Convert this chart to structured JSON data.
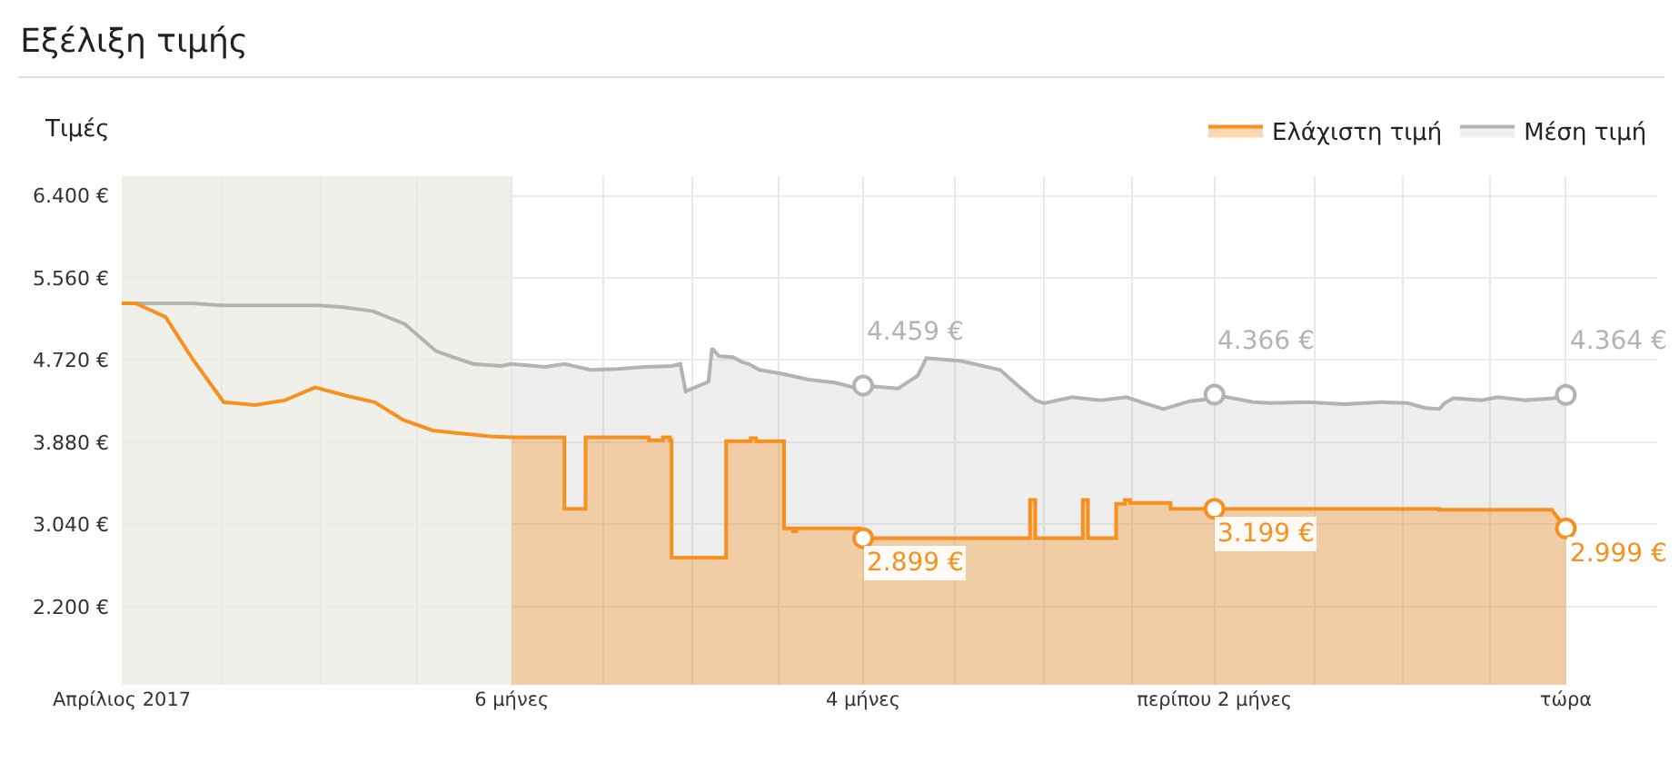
{
  "chart_data": {
    "type": "line",
    "title": "Εξέλιξη τιμής",
    "ylabel": "Τιμές",
    "series": [
      {
        "type": "line",
        "color": "#b3b3b3",
        "x": [
          8.22,
          7.82,
          7.65,
          7.1,
          6.96,
          6.79,
          6.61,
          6.43,
          6.22,
          6.06,
          6
        ],
        "values": [
          5300,
          5300,
          5280,
          5280,
          5260,
          5220,
          5090,
          4810,
          4680,
          4660,
          4680
        ]
      },
      {
        "name": "Μέση τιμή",
        "type": "area",
        "color": "#b3b3b3",
        "x": [
          6,
          5.81,
          5.7,
          5.65,
          5.55,
          5.4,
          5.24,
          5.09,
          5.04,
          5.01,
          4.93,
          4.88,
          4.86,
          4.82,
          4.74,
          4.69,
          4.65,
          4.59,
          4.46,
          4.31,
          4.16,
          4.05,
          4,
          3.8,
          3.69,
          3.64,
          3.44,
          3.22,
          3.12,
          3.02,
          2.97,
          2.81,
          2.65,
          2.5,
          2.4,
          2.29,
          2.14,
          2.04,
          2,
          1.78,
          1.68,
          1.47,
          1.26,
          1.05,
          0.9,
          0.8,
          0.72,
          0.69,
          0.64,
          0.48,
          0.39,
          0.23,
          0.07,
          0
        ],
        "values": [
          4680,
          4650,
          4680,
          4660,
          4620,
          4630,
          4650,
          4660,
          4680,
          4400,
          4460,
          4500,
          4840,
          4760,
          4750,
          4700,
          4680,
          4620,
          4580,
          4520,
          4490,
          4440,
          4459,
          4430,
          4560,
          4740,
          4710,
          4620,
          4460,
          4310,
          4280,
          4340,
          4310,
          4340,
          4280,
          4220,
          4300,
          4320,
          4366,
          4290,
          4280,
          4290,
          4270,
          4290,
          4280,
          4230,
          4220,
          4280,
          4330,
          4310,
          4340,
          4310,
          4330,
          4364
        ]
      },
      {
        "type": "line",
        "color": "#f7901e",
        "x": [
          8.22,
          8.14,
          7.97,
          7.82,
          7.64,
          7.46,
          7.29,
          7.12,
          6.93,
          6.78,
          6.62,
          6.45,
          6.12,
          6
        ],
        "values": [
          5300,
          5300,
          5160,
          4740,
          4290,
          4260,
          4310,
          4440,
          4350,
          4290,
          4110,
          4000,
          3940,
          3930
        ]
      },
      {
        "name": "Ελάχιστη τιμή",
        "type": "area",
        "color": "#f7901e",
        "x": [
          6,
          5.7,
          5.7,
          5.58,
          5.58,
          5.22,
          5.22,
          5.14,
          5.14,
          5.1,
          5.1,
          5.09,
          5.09,
          4.78,
          4.78,
          4.64,
          4.64,
          4.61,
          4.61,
          4.45,
          4.45,
          4.4,
          4.4,
          4.38,
          4.38,
          4.02,
          4.02,
          4,
          3.05,
          3.05,
          3.02,
          3.02,
          2.75,
          2.75,
          2.72,
          2.72,
          2.56,
          2.56,
          2.51,
          2.51,
          2.48,
          2.48,
          2.25,
          2.25,
          2,
          0.72,
          0.72,
          0.08,
          0
        ],
        "values": [
          3930,
          3930,
          3200,
          3200,
          3930,
          3930,
          3900,
          3900,
          3930,
          3930,
          3900,
          3900,
          2700,
          2700,
          3890,
          3890,
          3920,
          3920,
          3890,
          3890,
          3000,
          3000,
          2970,
          2970,
          3000,
          3000,
          2899,
          2899,
          2899,
          3290,
          3290,
          2899,
          2899,
          3290,
          3290,
          2899,
          2899,
          3250,
          3250,
          3290,
          3290,
          3260,
          3260,
          3199,
          3199,
          3199,
          3190,
          3190,
          2999
        ]
      }
    ],
    "annotations": [
      {
        "text": "4.459 €",
        "x": 4,
        "y": 4459
      },
      {
        "text": "4.366 €",
        "x": 2,
        "y": 4366
      },
      {
        "text": "4.364 €",
        "x": 0,
        "y": 4364
      },
      {
        "text": "2.899 €",
        "x": 4,
        "y": 2899
      },
      {
        "text": "3.199 €",
        "x": 2,
        "y": 3199
      },
      {
        "text": "2.999 €",
        "x": 0,
        "y": 2999
      }
    ],
    "bands": [
      {
        "axis": "x",
        "from": 8.22,
        "to": 6,
        "color": "#f0f0eb"
      }
    ],
    "xlim": [
      8.22,
      -0.52
    ],
    "xticks": [
      {
        "value": 8.22,
        "label": "Απρίλιος 2017"
      },
      {
        "value": 7.65,
        "label": null
      },
      {
        "value": 7.09,
        "label": null
      },
      {
        "value": 6.54,
        "label": null
      },
      {
        "value": 6,
        "label": "6 μήνες"
      },
      {
        "value": 5.48,
        "label": null
      },
      {
        "value": 4.97,
        "label": null
      },
      {
        "value": 4.48,
        "label": null
      },
      {
        "value": 4,
        "label": "4 μήνες"
      },
      {
        "value": 3.48,
        "label": null
      },
      {
        "value": 2.97,
        "label": null
      },
      {
        "value": 2.47,
        "label": null
      },
      {
        "value": 2,
        "label": "περίπου 2 μήνες"
      },
      {
        "value": 1.43,
        "label": null
      },
      {
        "value": 0.93,
        "label": null
      },
      {
        "value": 0.43,
        "label": null
      },
      {
        "value": 0,
        "label": "τώρα"
      }
    ],
    "ylim": [
      1400,
      6600
    ],
    "yticks": [
      {
        "value": 2200,
        "label": "2.200 €"
      },
      {
        "value": 3040,
        "label": "3.040 €"
      },
      {
        "value": 3880,
        "label": "3.880 €"
      },
      {
        "value": 4720,
        "label": "4.720 €"
      },
      {
        "value": 5560,
        "label": "5.560 €"
      },
      {
        "value": 6400,
        "label": "6.400 €"
      }
    ],
    "grid": true,
    "legend": "top right",
    "marker": "none",
    "line_style": "solid"
  }
}
